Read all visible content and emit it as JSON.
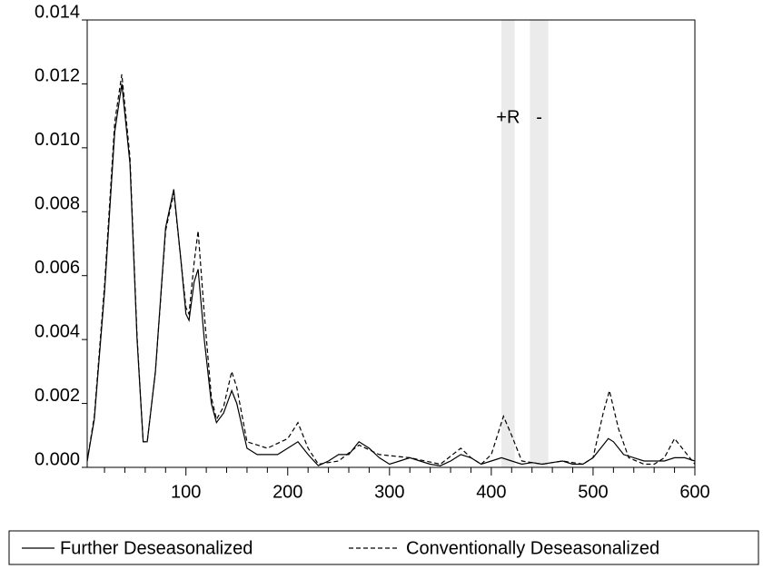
{
  "chart_data": {
    "type": "line",
    "xlim": [
      3,
      600
    ],
    "xticks": [
      100,
      200,
      300,
      400,
      500,
      600
    ],
    "xminorticks": [
      20,
      40,
      60,
      80,
      120,
      140,
      160,
      180,
      220,
      240,
      260,
      280,
      320,
      340,
      360,
      380,
      420,
      440,
      460,
      480,
      520,
      540,
      560,
      580
    ],
    "ylim": [
      0,
      0.014
    ],
    "yticks": [
      {
        "value": 0,
        "label": "0.000"
      },
      {
        "value": 0.002,
        "label": "0.002"
      },
      {
        "value": 0.004,
        "label": "0.004"
      },
      {
        "value": 0.006,
        "label": "0.006"
      },
      {
        "value": 0.008,
        "label": "0.008"
      },
      {
        "value": 0.01,
        "label": "0.010"
      },
      {
        "value": 0.012,
        "label": "0.012"
      },
      {
        "value": 0.014,
        "label": "0.014"
      }
    ],
    "bands": [
      {
        "x": [
          410,
          423
        ],
        "label": "+R",
        "color": "#ebebeb"
      },
      {
        "x": [
          438,
          456
        ],
        "label": "-",
        "color": "#ebebeb"
      }
    ],
    "series": [
      {
        "name": "Further Deseasonalized",
        "color": "#000000",
        "dash": "none",
        "x": [
          3,
          10,
          20,
          30,
          37,
          45,
          52,
          58,
          62,
          70,
          80,
          88,
          95,
          100,
          103,
          108,
          112,
          118,
          125,
          130,
          137,
          145,
          150,
          160,
          170,
          180,
          190,
          200,
          210,
          220,
          230,
          240,
          250,
          260,
          270,
          280,
          290,
          300,
          310,
          320,
          330,
          340,
          350,
          360,
          370,
          380,
          390,
          400,
          410,
          420,
          430,
          440,
          450,
          460,
          470,
          480,
          490,
          500,
          510,
          515,
          520,
          530,
          540,
          550,
          560,
          570,
          580,
          590,
          600
        ],
        "values": [
          0.0002,
          0.0015,
          0.0055,
          0.0105,
          0.012,
          0.0095,
          0.004,
          0.0008,
          0.0008,
          0.003,
          0.0075,
          0.0087,
          0.0065,
          0.0048,
          0.0046,
          0.0058,
          0.0062,
          0.004,
          0.002,
          0.0014,
          0.0017,
          0.0024,
          0.002,
          0.0006,
          0.0004,
          0.0004,
          0.0004,
          0.0006,
          0.0008,
          0.0004,
          5e-05,
          0.0002,
          0.0004,
          0.0004,
          0.0008,
          0.0006,
          0.0003,
          0.0001,
          0.0002,
          0.0003,
          0.0002,
          0.0001,
          5e-05,
          0.0002,
          0.0004,
          0.0003,
          0.0001,
          0.0002,
          0.0003,
          0.0002,
          0.0001,
          0.00015,
          0.0001,
          0.00015,
          0.0002,
          0.0001,
          0.0001,
          0.0003,
          0.0007,
          0.0009,
          0.0008,
          0.0004,
          0.0003,
          0.0002,
          0.0002,
          0.0002,
          0.0003,
          0.0003,
          0.0002
        ]
      },
      {
        "name": "Conventionally Deseasonalized",
        "color": "#000000",
        "dash": "5,3",
        "x": [
          3,
          10,
          20,
          30,
          37,
          45,
          52,
          58,
          62,
          70,
          80,
          88,
          95,
          100,
          103,
          108,
          112,
          118,
          125,
          130,
          137,
          145,
          150,
          160,
          180,
          200,
          210,
          220,
          230,
          250,
          270,
          290,
          320,
          350,
          370,
          380,
          390,
          400,
          412,
          420,
          430,
          450,
          470,
          490,
          500,
          510,
          516,
          525,
          535,
          550,
          560,
          570,
          580,
          590,
          600
        ],
        "values": [
          0.0002,
          0.0016,
          0.0057,
          0.0108,
          0.0123,
          0.0097,
          0.0041,
          0.0008,
          0.0008,
          0.003,
          0.0074,
          0.0086,
          0.0065,
          0.005,
          0.0048,
          0.0064,
          0.0074,
          0.0048,
          0.0022,
          0.0015,
          0.0019,
          0.003,
          0.0025,
          0.0008,
          0.0006,
          0.0009,
          0.0014,
          0.0006,
          0.0001,
          0.0002,
          0.0007,
          0.0004,
          0.0003,
          0.0001,
          0.0006,
          0.0003,
          0.0001,
          0.0004,
          0.0016,
          0.001,
          0.0002,
          0.0001,
          0.0002,
          0.0001,
          0.0003,
          0.0017,
          0.0024,
          0.0012,
          0.0003,
          0.0001,
          0.0001,
          0.0003,
          0.0009,
          0.0005,
          0.0001
        ]
      }
    ]
  }
}
